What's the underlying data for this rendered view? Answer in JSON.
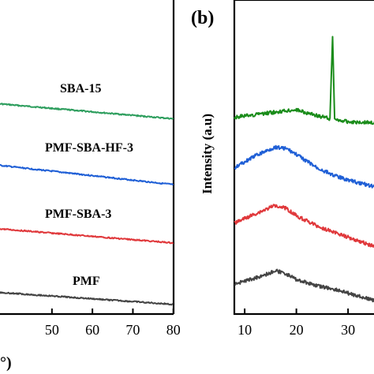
{
  "chart_data": [
    {
      "type": "line",
      "panel": "",
      "xlabel": "°)",
      "ylabel": "",
      "xlim": [
        36,
        82
      ],
      "x_ticks": [
        "50",
        "60",
        "70",
        "80"
      ],
      "x_tick_values": [
        50,
        60,
        70,
        80
      ],
      "grid": false,
      "series": [
        {
          "name": "SBA-15",
          "color": "#2e9e5e",
          "x": [
            36,
            80
          ],
          "y": [
            4.8,
            4.45
          ]
        },
        {
          "name": "PMF-SBA-HF-3",
          "color": "#1f5fd6",
          "x": [
            36,
            80
          ],
          "y": [
            3.4,
            2.95
          ]
        },
        {
          "name": "PMF-SBA-3",
          "color": "#e0383b",
          "x": [
            36,
            80
          ],
          "y": [
            1.95,
            1.62
          ]
        },
        {
          "name": "PMF",
          "color": "#444444",
          "x": [
            36,
            80
          ],
          "y": [
            0.5,
            0.22
          ]
        }
      ]
    },
    {
      "type": "line",
      "panel": "(b)",
      "xlabel": "",
      "ylabel": "Intensity (a.u)",
      "xlim": [
        8,
        37
      ],
      "x_ticks": [
        "10",
        "20",
        "30"
      ],
      "x_tick_values": [
        10,
        20,
        30
      ],
      "grid": false,
      "series": [
        {
          "name": "",
          "color": "#1a8c1a",
          "x": [
            8,
            15,
            20,
            24,
            26.5,
            27.0,
            27.4,
            27.8,
            30,
            37
          ],
          "y": [
            6.6,
            6.75,
            6.85,
            6.65,
            6.55,
            9.3,
            6.55,
            6.5,
            6.45,
            6.4
          ]
        },
        {
          "name": "",
          "color": "#1f5fd6",
          "x": [
            8,
            12,
            16,
            18,
            20,
            24,
            28,
            32,
            37
          ],
          "y": [
            4.9,
            5.3,
            5.6,
            5.55,
            5.35,
            4.9,
            4.6,
            4.4,
            4.2
          ]
        },
        {
          "name": "",
          "color": "#e0383b",
          "x": [
            8,
            12,
            16,
            18,
            20,
            24,
            28,
            32,
            37
          ],
          "y": [
            3.05,
            3.35,
            3.65,
            3.55,
            3.3,
            2.95,
            2.7,
            2.45,
            2.15
          ]
        },
        {
          "name": "",
          "color": "#444444",
          "x": [
            8,
            12,
            16,
            18,
            20,
            24,
            28,
            32,
            37
          ],
          "y": [
            1.0,
            1.2,
            1.45,
            1.35,
            1.15,
            0.95,
            0.8,
            0.6,
            0.35
          ]
        }
      ]
    }
  ]
}
